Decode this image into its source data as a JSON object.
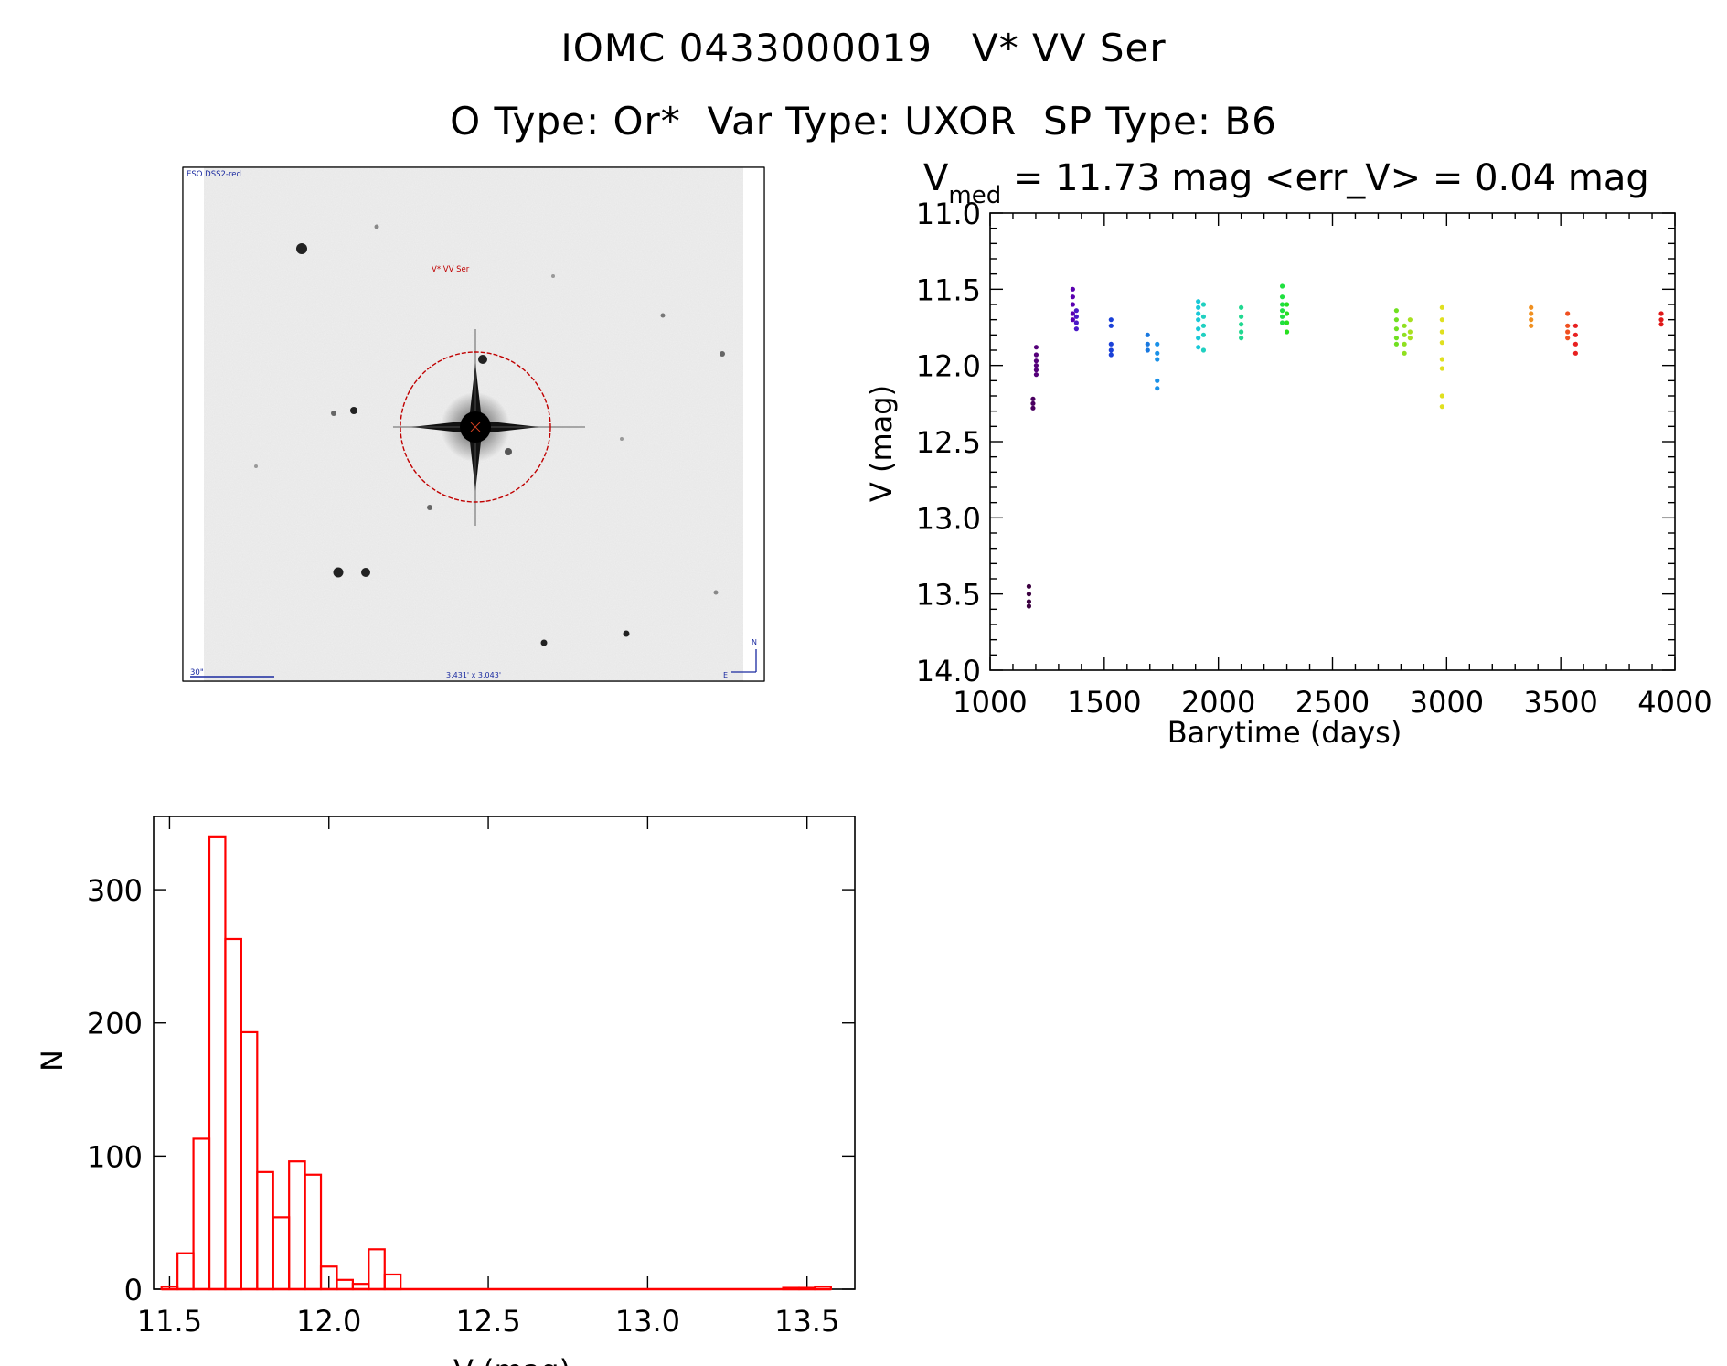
{
  "header": {
    "title_line1": "IOMC 0433000019   V* VV Ser",
    "title_line2": "O Type: Or*  Var Type: UXOR  SP Type: B6"
  },
  "sky_image": {
    "survey_label": "ESO DSS2-red",
    "target_label": "V* VV Ser",
    "scale_label": "30\"",
    "fov_label": "3.431' x 3.043'",
    "north_label": "N",
    "east_label": "E"
  },
  "chart_data": [
    {
      "type": "scatter",
      "title_prefix": "V",
      "title_sub": "med",
      "title_rest": " = 11.73 mag <err_V> = 0.04 mag",
      "xlabel": "Barytime (days)",
      "ylabel": "V (mag)",
      "xlim": [
        1000,
        4000
      ],
      "ylim": [
        14.0,
        11.0
      ],
      "xticks": [
        1000,
        1500,
        2000,
        2500,
        3000,
        3500,
        4000
      ],
      "xtick_labels": [
        "1000",
        "1500",
        "2000",
        "2500",
        "3000",
        "3500",
        "4000"
      ],
      "yticks": [
        11.0,
        11.5,
        12.0,
        12.5,
        13.0,
        13.5,
        14.0
      ],
      "ytick_labels": [
        "11.0",
        "11.5",
        "12.0",
        "12.5",
        "13.0",
        "13.5",
        "14.0"
      ],
      "groups": [
        {
          "x": 1170,
          "y": [
            13.45,
            13.5,
            13.55,
            13.58
          ],
          "color": "#3b0040"
        },
        {
          "x": 1188,
          "y": [
            12.22,
            12.25,
            12.28
          ],
          "color": "#4a0060"
        },
        {
          "x": 1202,
          "y": [
            11.88,
            11.93,
            11.97,
            12.0,
            12.03,
            12.06
          ],
          "color": "#55007a"
        },
        {
          "x": 1362,
          "y": [
            11.5,
            11.55,
            11.6,
            11.66,
            11.7
          ],
          "color": "#5a00b0"
        },
        {
          "x": 1378,
          "y": [
            11.64,
            11.68,
            11.72,
            11.76
          ],
          "color": "#4a18c8"
        },
        {
          "x": 1530,
          "y": [
            11.7,
            11.74,
            11.86,
            11.9,
            11.93
          ],
          "color": "#1a40d8"
        },
        {
          "x": 1690,
          "y": [
            11.8,
            11.86,
            11.9
          ],
          "color": "#1878e0"
        },
        {
          "x": 1732,
          "y": [
            11.86,
            11.92,
            11.96,
            12.1,
            12.15
          ],
          "color": "#1890e8"
        },
        {
          "x": 1912,
          "y": [
            11.58,
            11.62,
            11.66,
            11.7,
            11.76,
            11.82,
            11.88
          ],
          "color": "#18c8d8"
        },
        {
          "x": 1935,
          "y": [
            11.6,
            11.68,
            11.74,
            11.8,
            11.9
          ],
          "color": "#20d0c0"
        },
        {
          "x": 2100,
          "y": [
            11.62,
            11.68,
            11.73,
            11.78,
            11.82
          ],
          "color": "#20d890"
        },
        {
          "x": 2280,
          "y": [
            11.48,
            11.55,
            11.6,
            11.64,
            11.68,
            11.72
          ],
          "color": "#20e040"
        },
        {
          "x": 2300,
          "y": [
            11.6,
            11.66,
            11.72,
            11.78
          ],
          "color": "#28e020"
        },
        {
          "x": 2780,
          "y": [
            11.64,
            11.7,
            11.76,
            11.82,
            11.86
          ],
          "color": "#70e020"
        },
        {
          "x": 2815,
          "y": [
            11.74,
            11.8,
            11.86,
            11.92
          ],
          "color": "#90e020"
        },
        {
          "x": 2840,
          "y": [
            11.7,
            11.78,
            11.82
          ],
          "color": "#a8e020"
        },
        {
          "x": 2980,
          "y": [
            11.62,
            11.7,
            11.78,
            11.85,
            11.96,
            12.02,
            12.2,
            12.27
          ],
          "color": "#e0e020"
        },
        {
          "x": 3370,
          "y": [
            11.62,
            11.66,
            11.7,
            11.74
          ],
          "color": "#f09020"
        },
        {
          "x": 3530,
          "y": [
            11.66,
            11.74,
            11.78,
            11.82
          ],
          "color": "#f05020"
        },
        {
          "x": 3565,
          "y": [
            11.74,
            11.8,
            11.86,
            11.92
          ],
          "color": "#e82020"
        },
        {
          "x": 3940,
          "y": [
            11.66,
            11.7,
            11.73
          ],
          "color": "#e01818"
        }
      ]
    },
    {
      "type": "bar",
      "subtype": "histogram",
      "xlabel": "V (mag)",
      "ylabel": "N",
      "xlim": [
        11.45,
        13.65
      ],
      "ylim": [
        0,
        355
      ],
      "bin_width": 0.05,
      "bin_starts": [
        11.475,
        11.525,
        11.575,
        11.625,
        11.675,
        11.725,
        11.775,
        11.825,
        11.875,
        11.925,
        11.975,
        12.025,
        12.075,
        12.125,
        12.175,
        12.225,
        12.275,
        13.425,
        13.475,
        13.525
      ],
      "values": [
        2,
        27,
        113,
        340,
        263,
        193,
        88,
        54,
        96,
        86,
        17,
        7,
        4,
        30,
        11,
        0,
        0,
        1,
        1,
        2
      ],
      "color": "#ff0000",
      "xticks": [
        11.5,
        12.0,
        12.5,
        13.0,
        13.5
      ],
      "xtick_labels": [
        "11.5",
        "12.0",
        "12.5",
        "13.0",
        "13.5"
      ],
      "yticks": [
        0,
        100,
        200,
        300
      ],
      "ytick_labels": [
        "0",
        "100",
        "200",
        "300"
      ]
    }
  ]
}
